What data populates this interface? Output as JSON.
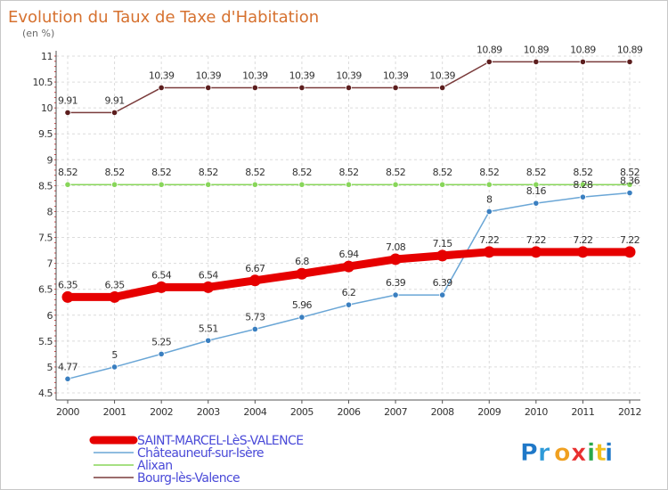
{
  "chart_data": {
    "type": "line",
    "title": "Evolution du Taux de Taxe d'Habitation",
    "subtitle": "(en %)",
    "x": [
      "2000",
      "2001",
      "2002",
      "2003",
      "2004",
      "2005",
      "2006",
      "2007",
      "2008",
      "2009",
      "2010",
      "2011",
      "2012"
    ],
    "ylim": [
      4.5,
      11
    ],
    "yticks": [
      4.5,
      5,
      5.5,
      6,
      6.5,
      7,
      7.5,
      8,
      8.5,
      9,
      9.5,
      10,
      10.5,
      11
    ],
    "ytick_labels": [
      "4.5",
      "5",
      "5.5",
      "6",
      "6.5",
      "7",
      "7.5",
      "8",
      "8.5",
      "9",
      "9.5",
      "10",
      "10.5",
      "11"
    ],
    "grid": true,
    "legend_position": "bottom-left",
    "series": [
      {
        "name": "Bourg-lès-Valence",
        "color": "#7a3b3b",
        "marker": "#5c1e1e",
        "width": 1.5,
        "values": [
          9.91,
          9.91,
          10.39,
          10.39,
          10.39,
          10.39,
          10.39,
          10.39,
          10.39,
          10.89,
          10.89,
          10.89,
          10.89
        ],
        "labels": [
          "9.91",
          "9.91",
          "10.39",
          "10.39",
          "10.39",
          "10.39",
          "10.39",
          "10.39",
          "10.39",
          "10.89",
          "10.89",
          "10.89",
          "10.89"
        ]
      },
      {
        "name": "Alixan",
        "color": "#88d65a",
        "marker": "#88d65a",
        "width": 1.5,
        "values": [
          8.52,
          8.52,
          8.52,
          8.52,
          8.52,
          8.52,
          8.52,
          8.52,
          8.52,
          8.52,
          8.52,
          8.52,
          8.52
        ],
        "labels": [
          "8.52",
          "8.52",
          "8.52",
          "8.52",
          "8.52",
          "8.52",
          "8.52",
          "8.52",
          "8.52",
          "8.52",
          "8.52",
          "8.52",
          "8.52"
        ]
      },
      {
        "name": "Châteauneuf-sur-Isère",
        "color": "#6aa6d6",
        "marker": "#3a7fc0",
        "width": 1.5,
        "values": [
          4.77,
          5,
          5.25,
          5.51,
          5.73,
          5.96,
          6.2,
          6.39,
          6.39,
          8,
          8.16,
          8.28,
          8.36
        ],
        "labels": [
          "4.77",
          "5",
          "5.25",
          "5.51",
          "5.73",
          "5.96",
          "6.2",
          "6.39",
          "6.39",
          "8",
          "8.16",
          "8.28",
          "8.36"
        ]
      },
      {
        "name": "SAINT-MARCEL-LèS-VALENCE",
        "color": "#e60000",
        "marker": "#e60000",
        "width": 9,
        "values": [
          6.35,
          6.35,
          6.54,
          6.54,
          6.67,
          6.8,
          6.94,
          7.08,
          7.15,
          7.22,
          7.22,
          7.22,
          7.22
        ],
        "labels": [
          "6.35",
          "6.35",
          "6.54",
          "6.54",
          "6.67",
          "6.8",
          "6.94",
          "7.08",
          "7.15",
          "7.22",
          "7.22",
          "7.22",
          "7.22"
        ]
      }
    ],
    "legend": [
      {
        "name": "SAINT-MARCEL-LèS-VALENCE",
        "color": "#e60000",
        "thick": true
      },
      {
        "name": "Châteauneuf-sur-Isère",
        "color": "#6aa6d6",
        "thick": false
      },
      {
        "name": "Alixan",
        "color": "#88d65a",
        "thick": false
      },
      {
        "name": "Bourg-lès-Valence",
        "color": "#7a3b3b",
        "thick": false
      }
    ]
  },
  "logo": {
    "letters": [
      "P",
      "r",
      "o",
      "x",
      "i",
      "t",
      "i"
    ],
    "colors": [
      "#1f78c8",
      "#2e9ad8",
      "#f0a020",
      "#e83030",
      "#2aa84a",
      "#f0c020",
      "#1f78c8"
    ]
  }
}
